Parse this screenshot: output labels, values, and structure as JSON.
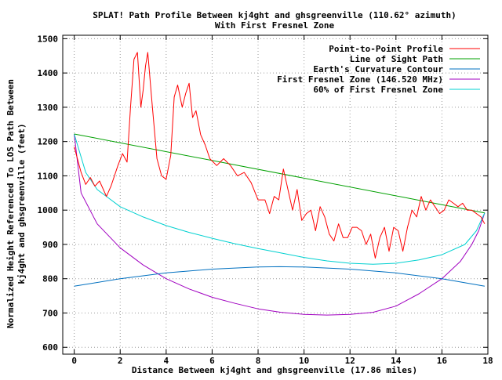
{
  "chart_data": {
    "type": "line",
    "title": "SPLAT! Path Profile Between kj4ght and ghsgreenville (110.62° azimuth)",
    "subtitle": "With First Fresnel Zone",
    "xlabel": "Distance Between kj4ght and ghsgreenville (17.86 miles)",
    "ylabel_line1": "Normalized Height Referenced To LOS Path Between",
    "ylabel_line2": "kj4ght and ghsgreenville (feet)",
    "xlim": [
      -0.5,
      18
    ],
    "ylim": [
      580,
      1510
    ],
    "x_ticks": [
      0,
      2,
      4,
      6,
      8,
      10,
      12,
      14,
      16,
      18
    ],
    "y_ticks": [
      600,
      700,
      800,
      900,
      1000,
      1100,
      1200,
      1300,
      1400,
      1500
    ],
    "grid": true,
    "legend_position": "top-right",
    "series": [
      {
        "name": "Point-to-Point Profile",
        "color": "#ff0000",
        "x": [
          0,
          0.3,
          0.5,
          0.7,
          0.9,
          1.1,
          1.4,
          1.6,
          1.9,
          2.1,
          2.3,
          2.45,
          2.6,
          2.75,
          2.9,
          3.0,
          3.1,
          3.2,
          3.4,
          3.6,
          3.8,
          4.0,
          4.2,
          4.35,
          4.5,
          4.7,
          4.85,
          5.0,
          5.15,
          5.3,
          5.5,
          5.7,
          5.9,
          6.2,
          6.5,
          6.8,
          7.1,
          7.4,
          7.7,
          8.0,
          8.3,
          8.5,
          8.7,
          8.9,
          9.1,
          9.3,
          9.5,
          9.7,
          9.9,
          10.1,
          10.3,
          10.5,
          10.7,
          10.9,
          11.1,
          11.3,
          11.5,
          11.7,
          11.9,
          12.1,
          12.3,
          12.5,
          12.7,
          12.9,
          13.1,
          13.3,
          13.5,
          13.7,
          13.9,
          14.1,
          14.3,
          14.5,
          14.7,
          14.9,
          15.1,
          15.3,
          15.5,
          15.7,
          15.9,
          16.1,
          16.3,
          16.5,
          16.7,
          16.9,
          17.1,
          17.3,
          17.5,
          17.7,
          17.86
        ],
        "values": [
          1185,
          1110,
          1075,
          1095,
          1070,
          1085,
          1040,
          1070,
          1130,
          1165,
          1140,
          1300,
          1440,
          1460,
          1300,
          1350,
          1420,
          1460,
          1300,
          1150,
          1100,
          1090,
          1160,
          1330,
          1365,
          1300,
          1340,
          1370,
          1270,
          1290,
          1220,
          1190,
          1150,
          1130,
          1150,
          1130,
          1100,
          1110,
          1080,
          1030,
          1030,
          990,
          1040,
          1030,
          1120,
          1060,
          1000,
          1060,
          970,
          990,
          1000,
          940,
          1010,
          980,
          930,
          910,
          960,
          920,
          920,
          950,
          950,
          940,
          900,
          930,
          860,
          920,
          950,
          880,
          950,
          940,
          880,
          950,
          1000,
          980,
          1040,
          1000,
          1030,
          1010,
          990,
          1000,
          1030,
          1020,
          1010,
          1020,
          1000,
          1000,
          990,
          980,
          960
        ]
      },
      {
        "name": "Line of Sight Path",
        "color": "#00a000",
        "x": [
          0,
          17.86
        ],
        "values": [
          1222,
          992
        ]
      },
      {
        "name": "Earth's Curvature Contour",
        "color": "#0070c0",
        "x": [
          0,
          2,
          4,
          6,
          8,
          8.93,
          10,
          12,
          14,
          16,
          17.86
        ],
        "values": [
          778,
          800,
          817,
          828,
          834,
          835,
          834,
          828,
          817,
          800,
          778
        ]
      },
      {
        "name": "First Fresnel Zone (146.520 MHz)",
        "color": "#a000c0",
        "x": [
          0,
          0.3,
          1,
          2,
          3,
          4,
          5,
          6,
          7,
          8,
          9,
          10,
          11,
          12,
          13,
          14,
          15,
          16,
          16.8,
          17.3,
          17.6,
          17.86
        ],
        "values": [
          1222,
          1050,
          960,
          890,
          840,
          800,
          770,
          746,
          728,
          712,
          702,
          696,
          694,
          696,
          702,
          720,
          756,
          800,
          850,
          900,
          940,
          992
        ]
      },
      {
        "name": "60% of First Fresnel Zone",
        "color": "#00d0d0",
        "x": [
          0,
          0.5,
          1,
          2,
          3,
          4,
          5,
          6,
          7,
          8,
          9,
          10,
          11,
          12,
          13,
          14,
          15,
          16,
          17,
          17.5,
          17.86
        ],
        "values": [
          1222,
          1110,
          1060,
          1010,
          980,
          955,
          935,
          918,
          902,
          888,
          875,
          862,
          852,
          845,
          842,
          845,
          855,
          870,
          900,
          940,
          992
        ]
      }
    ]
  }
}
